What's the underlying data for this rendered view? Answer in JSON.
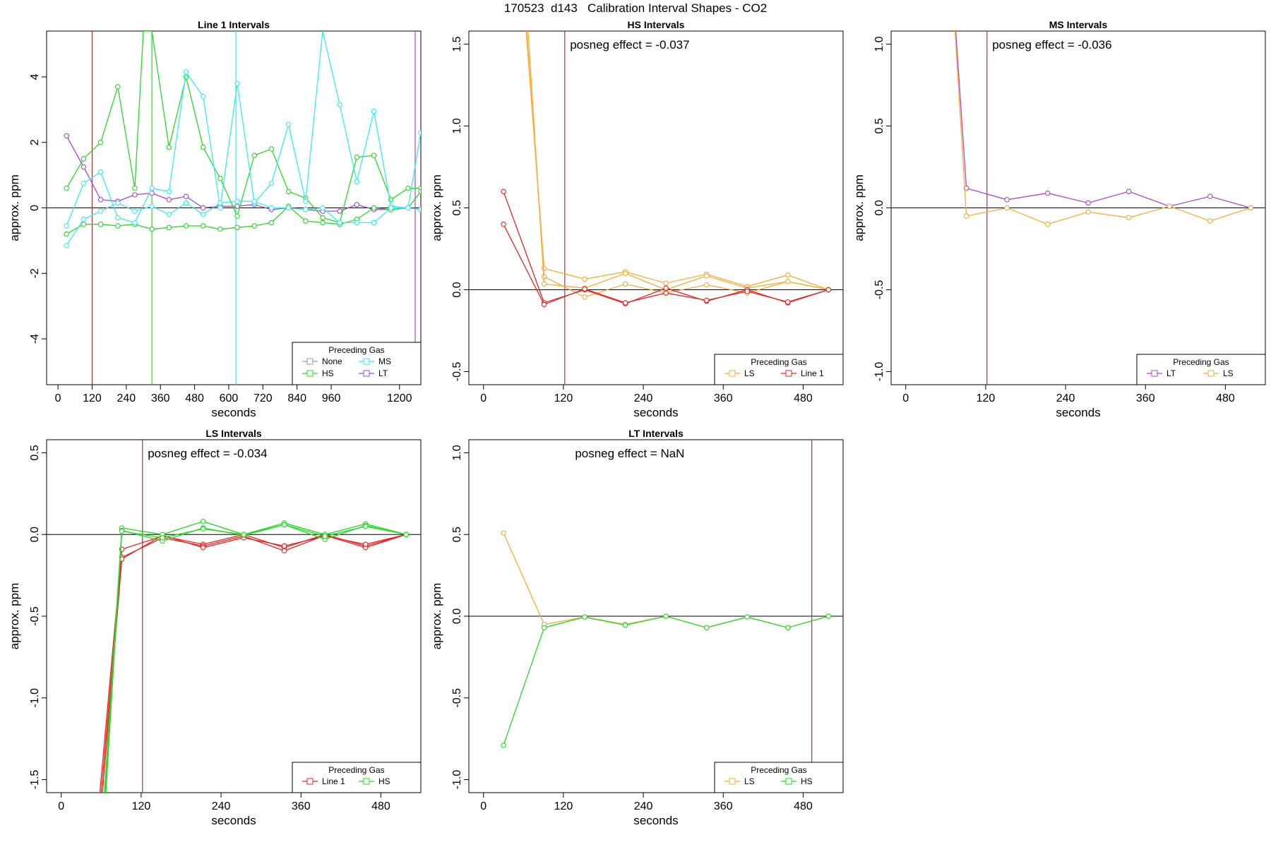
{
  "figure_title": "170523  d143   Calibration Interval Shapes - CO2",
  "colors": {
    "None": "#9a9a9a",
    "HS": "#22dd22",
    "MS": "#33eeee",
    "LT": "#aa44dd",
    "LS": "#ffaa33",
    "Line 1": "#ee2222",
    "marker": "#aa3333"
  },
  "chart_data": [
    {
      "type": "line",
      "title": "Line 1 Intervals",
      "xlabel": "seconds",
      "ylabel": "approx. ppm",
      "xlim": [
        -40,
        1275
      ],
      "ylim": [
        -5.4,
        5.4
      ],
      "xticks": [
        0,
        120,
        240,
        360,
        480,
        600,
        720,
        840,
        960,
        1200
      ],
      "yticks": [
        -4,
        -2,
        0,
        2,
        4
      ],
      "marker_x": [
        120,
        330,
        625,
        1255
      ],
      "marker_colors": [
        "#aa3333",
        "#22dd22",
        "#33eeee",
        "#aa44dd"
      ],
      "annotation": "",
      "legend": {
        "title": "Preceding Gas",
        "placement": "bottom-right",
        "columns": 2,
        "entries": [
          "None",
          "MS",
          "HS",
          "LT"
        ]
      },
      "series": [
        {
          "group": "LT",
          "x": [
            30,
            90,
            150,
            210,
            270,
            330,
            390,
            450,
            510,
            570,
            630,
            690,
            750,
            810,
            870,
            930,
            990,
            1050,
            1110,
            1170,
            1230,
            1275
          ],
          "y": [
            2.2,
            1.25,
            0.25,
            0.2,
            0.4,
            0.45,
            0.25,
            0.35,
            0.0,
            0.05,
            0.05,
            0.1,
            -0.05,
            0.0,
            -0.05,
            -0.1,
            -0.1,
            0.1,
            -0.05,
            -0.05,
            0.0,
            -0.05
          ]
        },
        {
          "group": "HS",
          "x": [
            30,
            90,
            150,
            210,
            270,
            300,
            330,
            390,
            450,
            510,
            570,
            630,
            690,
            750,
            810,
            870,
            930,
            990,
            1050,
            1110,
            1170,
            1230,
            1275
          ],
          "y": [
            0.6,
            1.5,
            2.0,
            3.7,
            0.6,
            5.4,
            5.4,
            1.85,
            4.0,
            1.85,
            0.9,
            -0.25,
            1.6,
            1.8,
            0.5,
            0.3,
            -0.3,
            -0.45,
            1.55,
            1.6,
            0.25,
            0.6,
            0.6
          ]
        },
        {
          "group": "HS",
          "x": [
            30,
            90,
            150,
            210,
            270,
            330,
            390,
            450,
            510,
            570,
            630,
            690,
            750,
            810,
            870,
            930,
            990,
            1050,
            1110,
            1170,
            1230,
            1275
          ],
          "y": [
            -0.8,
            -0.5,
            -0.5,
            -0.55,
            -0.5,
            -0.65,
            -0.6,
            -0.55,
            -0.55,
            -0.65,
            -0.6,
            -0.55,
            -0.45,
            0.05,
            -0.4,
            -0.45,
            -0.5,
            -0.35,
            0.0,
            -0.05,
            0.0,
            0.5
          ]
        },
        {
          "group": "MS",
          "x": [
            30,
            90,
            150,
            210,
            270,
            330,
            390,
            450,
            510,
            570,
            630,
            690,
            750,
            810,
            870,
            930,
            990,
            1050,
            1110,
            1170,
            1230,
            1275
          ],
          "y": [
            -0.55,
            0.75,
            1.1,
            -0.3,
            -0.45,
            0.6,
            0.5,
            4.15,
            3.4,
            0.0,
            3.8,
            0.15,
            0.75,
            2.55,
            0.2,
            5.4,
            3.15,
            0.8,
            2.95,
            0.05,
            0.0,
            2.3
          ]
        },
        {
          "group": "MS",
          "x": [
            30,
            90,
            150,
            210,
            270,
            330,
            390,
            450,
            510,
            570,
            630,
            690,
            750,
            810,
            870,
            930,
            990,
            1050,
            1110,
            1170,
            1230,
            1275
          ],
          "y": [
            -1.15,
            -0.35,
            -0.1,
            0.15,
            -0.1,
            0.05,
            -0.2,
            0.15,
            -0.2,
            0.15,
            0.2,
            0.2,
            0.0,
            0.0,
            -0.05,
            0.0,
            -0.45,
            -0.45,
            -0.45,
            0.0,
            0.0,
            -0.05
          ]
        }
      ]
    },
    {
      "type": "line",
      "title": "HS Intervals",
      "xlabel": "seconds",
      "ylabel": "approx. ppm",
      "xlim": [
        -22,
        540
      ],
      "ylim": [
        -0.58,
        1.58
      ],
      "xticks": [
        0,
        120,
        240,
        360,
        480
      ],
      "yticks": [
        -0.5,
        0.0,
        0.5,
        1.0,
        1.5
      ],
      "marker_x": [
        122
      ],
      "marker_colors": [
        "#aa3333"
      ],
      "annotation": "posneg effect = -0.037",
      "legend": {
        "title": "Preceding Gas",
        "placement": "bottom-right",
        "columns": 2,
        "entries": [
          "LS",
          "Line 1"
        ]
      },
      "series": [
        {
          "group": "LS",
          "x": [
            64,
            91,
            152,
            213,
            274,
            335,
            396,
            457,
            518
          ],
          "y": [
            1.58,
            0.13,
            0.065,
            0.11,
            0.04,
            0.095,
            0.02,
            0.09,
            0.0
          ]
        },
        {
          "group": "LS",
          "x": [
            65,
            91,
            152,
            213,
            274,
            335,
            396,
            457,
            518
          ],
          "y": [
            1.58,
            0.08,
            -0.045,
            0.035,
            -0.02,
            0.03,
            -0.02,
            0.05,
            0.0
          ]
        },
        {
          "group": "LS",
          "x": [
            67,
            91,
            152,
            213,
            274,
            335,
            396,
            457,
            518
          ],
          "y": [
            1.58,
            0.035,
            0.01,
            0.1,
            0.0,
            0.085,
            0.01,
            0.05,
            0.0
          ]
        },
        {
          "group": "Line 1",
          "x": [
            30,
            91,
            152,
            213,
            274,
            335,
            396,
            457,
            518
          ],
          "y": [
            0.6,
            -0.08,
            0.0,
            -0.085,
            0.01,
            -0.07,
            0.0,
            -0.08,
            0.0
          ]
        },
        {
          "group": "Line 1",
          "x": [
            30,
            91,
            152,
            213,
            274,
            335,
            396,
            457,
            518
          ],
          "y": [
            0.4,
            -0.09,
            0.005,
            -0.08,
            -0.02,
            -0.065,
            -0.01,
            -0.075,
            0.0
          ]
        }
      ]
    },
    {
      "type": "line",
      "title": "MS Intervals",
      "xlabel": "seconds",
      "ylabel": "approx. ppm",
      "xlim": [
        -22,
        540
      ],
      "ylim": [
        -1.08,
        1.08
      ],
      "xticks": [
        0,
        120,
        240,
        360,
        480
      ],
      "yticks": [
        -1.0,
        -0.5,
        0.0,
        0.5,
        1.0
      ],
      "marker_x": [
        122
      ],
      "marker_colors": [
        "#aa3333"
      ],
      "annotation": "posneg effect = -0.036",
      "legend": {
        "title": "Preceding Gas",
        "placement": "bottom-right",
        "columns": 2,
        "entries": [
          "LT",
          "LS"
        ]
      },
      "series": [
        {
          "group": "LT",
          "x": [
            75,
            91,
            152,
            213,
            274,
            335,
            396,
            457,
            518
          ],
          "y": [
            1.08,
            0.12,
            0.05,
            0.09,
            0.03,
            0.1,
            0.01,
            0.07,
            0.0
          ]
        },
        {
          "group": "LS",
          "x": [
            74,
            91,
            152,
            213,
            274,
            335,
            396,
            457,
            518
          ],
          "y": [
            1.08,
            -0.05,
            0.0,
            -0.1,
            -0.025,
            -0.06,
            0.01,
            -0.08,
            0.0
          ]
        }
      ]
    },
    {
      "type": "line",
      "title": "LS Intervals",
      "xlabel": "seconds",
      "ylabel": "approx. ppm",
      "xlim": [
        -22,
        540
      ],
      "ylim": [
        -1.58,
        0.58
      ],
      "xticks": [
        0,
        120,
        240,
        360,
        480
      ],
      "yticks": [
        -1.5,
        -1.0,
        -0.5,
        0.0,
        0.5
      ],
      "marker_x": [
        122
      ],
      "marker_colors": [
        "#aa3333"
      ],
      "annotation": "posneg effect = -0.034",
      "legend": {
        "title": "Preceding Gas",
        "placement": "bottom-right",
        "columns": 2,
        "entries": [
          "Line 1",
          "HS"
        ]
      },
      "series": [
        {
          "group": "Line 1",
          "x": [
            58,
            91,
            152,
            213,
            274,
            335,
            396,
            457,
            518
          ],
          "y": [
            -1.58,
            -0.09,
            -0.01,
            -0.06,
            0.0,
            -0.08,
            0.0,
            -0.07,
            0.0
          ]
        },
        {
          "group": "Line 1",
          "x": [
            60,
            91,
            152,
            213,
            274,
            335,
            396,
            457,
            518
          ],
          "y": [
            -1.58,
            -0.14,
            -0.02,
            -0.07,
            -0.01,
            -0.1,
            -0.005,
            -0.08,
            0.0
          ]
        },
        {
          "group": "Line 1",
          "x": [
            62,
            91,
            152,
            213,
            274,
            335,
            396,
            457,
            518
          ],
          "y": [
            -1.58,
            -0.15,
            -0.005,
            -0.08,
            -0.02,
            -0.07,
            -0.01,
            -0.06,
            0.0
          ]
        },
        {
          "group": "HS",
          "x": [
            65,
            91,
            152,
            213,
            274,
            335,
            396,
            457,
            518
          ],
          "y": [
            -1.58,
            0.04,
            0.0,
            0.08,
            0.0,
            0.07,
            0.0,
            0.065,
            0.0
          ]
        },
        {
          "group": "HS",
          "x": [
            66,
            91,
            152,
            213,
            274,
            335,
            396,
            457,
            518
          ],
          "y": [
            -1.58,
            0.025,
            -0.04,
            0.04,
            -0.005,
            0.06,
            -0.03,
            0.055,
            0.0
          ]
        },
        {
          "group": "HS",
          "x": [
            67,
            91,
            152,
            213,
            274,
            335,
            396,
            457,
            518
          ],
          "y": [
            -1.58,
            0.02,
            -0.02,
            0.035,
            0.0,
            0.06,
            -0.01,
            0.05,
            0.0
          ]
        }
      ]
    },
    {
      "type": "line",
      "title": "LT Intervals",
      "xlabel": "seconds",
      "ylabel": "approx. ppm",
      "xlim": [
        -22,
        540
      ],
      "ylim": [
        -1.08,
        1.08
      ],
      "xticks": [
        0,
        120,
        240,
        360,
        480
      ],
      "yticks": [
        -1.0,
        -0.5,
        0.0,
        0.5,
        1.0
      ],
      "marker_x": [
        493
      ],
      "marker_colors": [
        "#aa3333"
      ],
      "annotation": "posneg effect = NaN",
      "legend": {
        "title": "Preceding Gas",
        "placement": "bottom-right",
        "columns": 2,
        "entries": [
          "LS",
          "HS"
        ]
      },
      "series": [
        {
          "group": "LS",
          "x": [
            30,
            91,
            152,
            213,
            274,
            335,
            396,
            457,
            518
          ],
          "y": [
            0.51,
            -0.05,
            -0.005,
            -0.05,
            0.0,
            -0.07,
            -0.005,
            -0.07,
            0.0
          ]
        },
        {
          "group": "HS",
          "x": [
            30,
            91,
            152,
            213,
            274,
            335,
            396,
            457,
            518
          ],
          "y": [
            -0.79,
            -0.07,
            -0.005,
            -0.055,
            0.0,
            -0.07,
            -0.005,
            -0.07,
            0.0
          ]
        }
      ]
    }
  ]
}
